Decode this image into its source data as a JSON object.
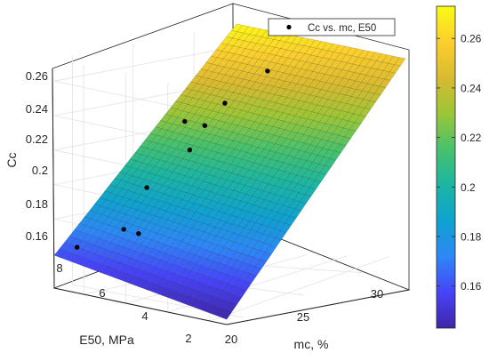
{
  "chart_data": {
    "type": "surface",
    "zlabel": "Cc",
    "ylabel": "E50, MPa",
    "xlabel": "mc, %",
    "legend": {
      "entry": "Cc vs. mc, E50",
      "placement": "top-right"
    },
    "grid": true,
    "z_ticks": [
      "0.16",
      "0.18",
      "0.2",
      "0.22",
      "0.24",
      "0.26"
    ],
    "y_ticks": [
      "2",
      "4",
      "6",
      "8"
    ],
    "x_ticks": [
      "20",
      "25",
      "30"
    ],
    "colorbar_ticks": [
      "0.16",
      "0.18",
      "0.2",
      "0.22",
      "0.24",
      "0.26"
    ],
    "colorbar_range": [
      0.143,
      0.273
    ],
    "surface_corners": [
      {
        "label": "mc 18.5, E50 1.2",
        "mc": 18.5,
        "E50": 1.2,
        "Cc": 0.143
      },
      {
        "label": "mc 18.5, E50 9.4",
        "mc": 18.5,
        "E50": 9.4,
        "Cc": 0.159
      },
      {
        "label": "mc 33.5, E50 9.4",
        "mc": 33.5,
        "E50": 9.4,
        "Cc": 0.273
      },
      {
        "label": "mc 33.5, E50 1.2",
        "mc": 33.5,
        "E50": 1.2,
        "Cc": 0.255
      }
    ],
    "points": [
      {
        "mc": 19.0,
        "E50": 8.6,
        "Cc": 0.165
      },
      {
        "mc": 20.6,
        "E50": 7.3,
        "Cc": 0.176
      },
      {
        "mc": 21.3,
        "E50": 7.0,
        "Cc": 0.173
      },
      {
        "mc": 22.5,
        "E50": 7.3,
        "Cc": 0.197
      },
      {
        "mc": 24.5,
        "E50": 6.4,
        "Cc": 0.217
      },
      {
        "mc": 26.5,
        "E50": 7.8,
        "Cc": 0.228
      },
      {
        "mc": 27.3,
        "E50": 7.3,
        "Cc": 0.225
      },
      {
        "mc": 30.5,
        "E50": 8.2,
        "Cc": 0.232
      },
      {
        "mc": 33.0,
        "E50": 7.6,
        "Cc": 0.247
      }
    ],
    "colormap": [
      "#3e26a8",
      "#4743f8",
      "#2e87f7",
      "#0fa2d0",
      "#1cb5a3",
      "#47c16c",
      "#9bc637",
      "#d9ba30",
      "#fcce2e",
      "#f9fb15"
    ]
  }
}
